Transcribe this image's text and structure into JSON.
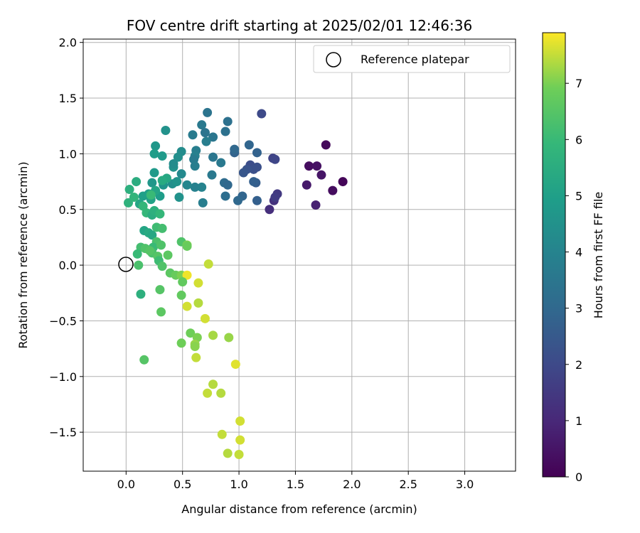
{
  "chart_data": {
    "type": "scatter",
    "title": "FOV centre drift starting at 2025/02/01 12:46:36",
    "xlabel": "Angular distance from reference (arcmin)",
    "ylabel": "Rotation from reference (arcmin)",
    "xlim": [
      -0.38,
      3.45
    ],
    "ylim": [
      -1.85,
      2.03
    ],
    "xticks": [
      "0.0",
      "0.5",
      "1.0",
      "1.5",
      "2.0",
      "2.5",
      "3.0"
    ],
    "yticks": [
      "−1.5",
      "−1.0",
      "−0.5",
      "0.0",
      "0.5",
      "1.0",
      "1.5",
      "2.0"
    ],
    "grid": true,
    "legend": {
      "placement": "upper-right",
      "label": "Reference platepar"
    },
    "reference_point": {
      "x": 0.0,
      "y": 0.0
    },
    "colorbar": {
      "label": "Hours from first FF file",
      "range": [
        0,
        7.9
      ],
      "ticks": [
        "0",
        "1",
        "2",
        "3",
        "4",
        "5",
        "6",
        "7"
      ],
      "colormap": "viridis"
    },
    "points": [
      {
        "x": 1.77,
        "y": 1.08,
        "h": 0.2
      },
      {
        "x": 1.62,
        "y": 0.89,
        "h": 0.3
      },
      {
        "x": 1.69,
        "y": 0.89,
        "h": 0.4
      },
      {
        "x": 1.73,
        "y": 0.81,
        "h": 0.5
      },
      {
        "x": 1.92,
        "y": 0.75,
        "h": 0.1
      },
      {
        "x": 1.6,
        "y": 0.72,
        "h": 0.6
      },
      {
        "x": 1.83,
        "y": 0.67,
        "h": 0.3
      },
      {
        "x": 1.68,
        "y": 0.54,
        "h": 0.8
      },
      {
        "x": 1.27,
        "y": 0.5,
        "h": 1.2
      },
      {
        "x": 1.31,
        "y": 0.58,
        "h": 1.3
      },
      {
        "x": 1.34,
        "y": 0.64,
        "h": 1.5
      },
      {
        "x": 1.32,
        "y": 0.61,
        "h": 1.6
      },
      {
        "x": 1.3,
        "y": 0.96,
        "h": 1.8
      },
      {
        "x": 1.32,
        "y": 0.95,
        "h": 1.9
      },
      {
        "x": 1.2,
        "y": 1.36,
        "h": 2.0
      },
      {
        "x": 1.1,
        "y": 0.9,
        "h": 2.1
      },
      {
        "x": 1.13,
        "y": 0.86,
        "h": 2.2
      },
      {
        "x": 1.07,
        "y": 0.86,
        "h": 2.3
      },
      {
        "x": 1.16,
        "y": 0.88,
        "h": 2.2
      },
      {
        "x": 1.04,
        "y": 0.83,
        "h": 2.4
      },
      {
        "x": 1.15,
        "y": 0.74,
        "h": 2.6
      },
      {
        "x": 1.13,
        "y": 0.75,
        "h": 2.7
      },
      {
        "x": 1.16,
        "y": 1.01,
        "h": 2.8
      },
      {
        "x": 1.09,
        "y": 1.08,
        "h": 2.9
      },
      {
        "x": 0.96,
        "y": 1.01,
        "h": 2.8
      },
      {
        "x": 0.96,
        "y": 1.04,
        "h": 3.0
      },
      {
        "x": 1.03,
        "y": 0.62,
        "h": 2.9
      },
      {
        "x": 0.99,
        "y": 0.58,
        "h": 3.0
      },
      {
        "x": 1.16,
        "y": 0.58,
        "h": 2.7
      },
      {
        "x": 0.87,
        "y": 0.74,
        "h": 3.1
      },
      {
        "x": 0.9,
        "y": 0.72,
        "h": 3.0
      },
      {
        "x": 0.88,
        "y": 0.62,
        "h": 3.2
      },
      {
        "x": 0.9,
        "y": 1.29,
        "h": 3.3
      },
      {
        "x": 0.72,
        "y": 1.37,
        "h": 3.4
      },
      {
        "x": 0.88,
        "y": 1.2,
        "h": 3.3
      },
      {
        "x": 0.77,
        "y": 1.15,
        "h": 3.5
      },
      {
        "x": 0.7,
        "y": 1.19,
        "h": 3.4
      },
      {
        "x": 0.67,
        "y": 1.26,
        "h": 3.6
      },
      {
        "x": 0.59,
        "y": 1.17,
        "h": 3.7
      },
      {
        "x": 0.71,
        "y": 1.11,
        "h": 3.8
      },
      {
        "x": 0.77,
        "y": 0.97,
        "h": 3.5
      },
      {
        "x": 0.84,
        "y": 0.92,
        "h": 3.6
      },
      {
        "x": 0.76,
        "y": 0.81,
        "h": 3.6
      },
      {
        "x": 0.62,
        "y": 1.03,
        "h": 3.8
      },
      {
        "x": 0.61,
        "y": 0.98,
        "h": 3.9
      },
      {
        "x": 0.6,
        "y": 0.95,
        "h": 3.7
      },
      {
        "x": 0.61,
        "y": 0.89,
        "h": 3.8
      },
      {
        "x": 0.61,
        "y": 0.7,
        "h": 3.9
      },
      {
        "x": 0.67,
        "y": 0.7,
        "h": 4.0
      },
      {
        "x": 0.68,
        "y": 0.56,
        "h": 3.8
      },
      {
        "x": 0.54,
        "y": 0.72,
        "h": 4.1
      },
      {
        "x": 0.49,
        "y": 0.82,
        "h": 4.2
      },
      {
        "x": 0.49,
        "y": 1.02,
        "h": 4.3
      },
      {
        "x": 0.46,
        "y": 0.97,
        "h": 4.4
      },
      {
        "x": 0.42,
        "y": 0.88,
        "h": 4.5
      },
      {
        "x": 0.42,
        "y": 0.91,
        "h": 4.3
      },
      {
        "x": 0.41,
        "y": 0.73,
        "h": 4.4
      },
      {
        "x": 0.45,
        "y": 0.75,
        "h": 4.6
      },
      {
        "x": 0.35,
        "y": 1.21,
        "h": 4.5
      },
      {
        "x": 0.26,
        "y": 1.07,
        "h": 4.7
      },
      {
        "x": 0.25,
        "y": 1.0,
        "h": 4.9
      },
      {
        "x": 0.32,
        "y": 0.98,
        "h": 4.8
      },
      {
        "x": 0.23,
        "y": 0.74,
        "h": 4.7
      },
      {
        "x": 0.25,
        "y": 0.83,
        "h": 4.8
      },
      {
        "x": 0.33,
        "y": 0.72,
        "h": 4.6
      },
      {
        "x": 0.3,
        "y": 0.62,
        "h": 4.9
      },
      {
        "x": 0.47,
        "y": 0.61,
        "h": 4.5
      },
      {
        "x": 0.36,
        "y": 0.78,
        "h": 5.3
      },
      {
        "x": 0.32,
        "y": 0.76,
        "h": 5.4
      },
      {
        "x": 0.26,
        "y": 0.67,
        "h": 5.2
      },
      {
        "x": 0.22,
        "y": 0.59,
        "h": 5.1
      },
      {
        "x": 0.2,
        "y": 0.64,
        "h": 5.0
      },
      {
        "x": 0.15,
        "y": 0.62,
        "h": 5.0
      },
      {
        "x": 0.12,
        "y": 0.55,
        "h": 5.2
      },
      {
        "x": 0.09,
        "y": 0.75,
        "h": 5.5
      },
      {
        "x": 0.03,
        "y": 0.68,
        "h": 5.6
      },
      {
        "x": 0.02,
        "y": 0.56,
        "h": 5.7
      },
      {
        "x": 0.07,
        "y": 0.61,
        "h": 5.8
      },
      {
        "x": 0.22,
        "y": 0.63,
        "h": 6.0
      },
      {
        "x": 0.15,
        "y": 0.53,
        "h": 5.9
      },
      {
        "x": 0.18,
        "y": 0.47,
        "h": 5.9
      },
      {
        "x": 0.23,
        "y": 0.45,
        "h": 5.5
      },
      {
        "x": 0.25,
        "y": 0.49,
        "h": 5.6
      },
      {
        "x": 0.3,
        "y": 0.46,
        "h": 5.9
      },
      {
        "x": 0.16,
        "y": 0.31,
        "h": 5.2
      },
      {
        "x": 0.2,
        "y": 0.29,
        "h": 5.4
      },
      {
        "x": 0.23,
        "y": 0.27,
        "h": 5.3
      },
      {
        "x": 0.27,
        "y": 0.34,
        "h": 6.1
      },
      {
        "x": 0.32,
        "y": 0.33,
        "h": 6.2
      },
      {
        "x": 0.27,
        "y": 0.21,
        "h": 6.3
      },
      {
        "x": 0.24,
        "y": 0.16,
        "h": 6.0
      },
      {
        "x": 0.31,
        "y": 0.18,
        "h": 6.4
      },
      {
        "x": 0.13,
        "y": 0.16,
        "h": 6.2
      },
      {
        "x": 0.17,
        "y": 0.15,
        "h": 6.4
      },
      {
        "x": 0.1,
        "y": 0.1,
        "h": 6.0
      },
      {
        "x": 0.23,
        "y": 0.11,
        "h": 6.3
      },
      {
        "x": 0.21,
        "y": 0.13,
        "h": 6.5
      },
      {
        "x": 0.28,
        "y": 0.08,
        "h": 6.5
      },
      {
        "x": 0.29,
        "y": 0.04,
        "h": 6.1
      },
      {
        "x": 0.37,
        "y": 0.09,
        "h": 6.6
      },
      {
        "x": 0.11,
        "y": 0.0,
        "h": 6.3
      },
      {
        "x": 0.32,
        "y": -0.01,
        "h": 6.4
      },
      {
        "x": 0.39,
        "y": -0.07,
        "h": 6.6
      },
      {
        "x": 0.49,
        "y": 0.21,
        "h": 6.4
      },
      {
        "x": 0.54,
        "y": 0.18,
        "h": 7.0
      },
      {
        "x": 0.54,
        "y": 0.17,
        "h": 6.8
      },
      {
        "x": 0.44,
        "y": -0.09,
        "h": 6.8
      },
      {
        "x": 0.49,
        "y": -0.09,
        "h": 7.0
      },
      {
        "x": 0.54,
        "y": -0.09,
        "h": 7.8
      },
      {
        "x": 0.5,
        "y": -0.15,
        "h": 6.7
      },
      {
        "x": 0.64,
        "y": -0.16,
        "h": 7.6
      },
      {
        "x": 0.73,
        "y": 0.01,
        "h": 7.5
      },
      {
        "x": 0.3,
        "y": -0.22,
        "h": 6.5
      },
      {
        "x": 0.13,
        "y": -0.26,
        "h": 5.6
      },
      {
        "x": 0.49,
        "y": -0.27,
        "h": 6.7
      },
      {
        "x": 0.54,
        "y": -0.37,
        "h": 7.6
      },
      {
        "x": 0.64,
        "y": -0.34,
        "h": 7.4
      },
      {
        "x": 0.31,
        "y": -0.42,
        "h": 6.6
      },
      {
        "x": 0.7,
        "y": -0.48,
        "h": 7.6
      },
      {
        "x": 0.57,
        "y": -0.61,
        "h": 6.9
      },
      {
        "x": 0.63,
        "y": -0.65,
        "h": 7.0
      },
      {
        "x": 0.77,
        "y": -0.63,
        "h": 7.3
      },
      {
        "x": 0.91,
        "y": -0.65,
        "h": 7.2
      },
      {
        "x": 0.61,
        "y": -0.71,
        "h": 7.2
      },
      {
        "x": 0.61,
        "y": -0.73,
        "h": 7.1
      },
      {
        "x": 0.49,
        "y": -0.7,
        "h": 6.9
      },
      {
        "x": 0.62,
        "y": -0.83,
        "h": 7.5
      },
      {
        "x": 0.16,
        "y": -0.85,
        "h": 6.5
      },
      {
        "x": 0.97,
        "y": -0.89,
        "h": 7.7
      },
      {
        "x": 0.77,
        "y": -1.07,
        "h": 7.4
      },
      {
        "x": 0.72,
        "y": -1.15,
        "h": 7.5
      },
      {
        "x": 0.84,
        "y": -1.15,
        "h": 7.4
      },
      {
        "x": 1.01,
        "y": -1.4,
        "h": 7.6
      },
      {
        "x": 0.85,
        "y": -1.52,
        "h": 7.5
      },
      {
        "x": 1.01,
        "y": -1.57,
        "h": 7.6
      },
      {
        "x": 0.9,
        "y": -1.69,
        "h": 7.4
      },
      {
        "x": 1.0,
        "y": -1.7,
        "h": 7.5
      }
    ]
  }
}
